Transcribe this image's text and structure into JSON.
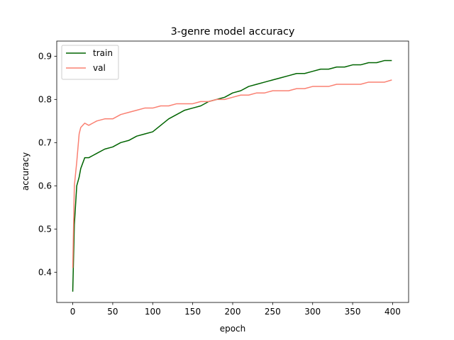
{
  "chart_data": {
    "type": "line",
    "title": "3-genre model accuracy",
    "xlabel": "epoch",
    "ylabel": "accuracy",
    "xlim": [
      -20,
      420
    ],
    "ylim": [
      0.33,
      0.935
    ],
    "xticks": [
      0,
      50,
      100,
      150,
      200,
      250,
      300,
      350,
      400
    ],
    "yticks": [
      0.4,
      0.5,
      0.6,
      0.7,
      0.8,
      0.9
    ],
    "grid": false,
    "legend": "upper-left",
    "series": [
      {
        "name": "train",
        "color": "#006400",
        "x": [
          0,
          2,
          5,
          8,
          10,
          15,
          20,
          25,
          30,
          40,
          50,
          60,
          70,
          80,
          90,
          100,
          110,
          120,
          130,
          140,
          150,
          160,
          170,
          180,
          190,
          200,
          210,
          220,
          230,
          240,
          250,
          260,
          270,
          280,
          290,
          300,
          310,
          320,
          330,
          340,
          350,
          360,
          370,
          380,
          390,
          399
        ],
        "y": [
          0.355,
          0.51,
          0.6,
          0.62,
          0.64,
          0.665,
          0.665,
          0.67,
          0.675,
          0.685,
          0.69,
          0.7,
          0.705,
          0.715,
          0.72,
          0.725,
          0.74,
          0.755,
          0.765,
          0.775,
          0.78,
          0.785,
          0.795,
          0.8,
          0.805,
          0.815,
          0.82,
          0.83,
          0.835,
          0.84,
          0.845,
          0.85,
          0.855,
          0.86,
          0.86,
          0.865,
          0.87,
          0.87,
          0.875,
          0.875,
          0.88,
          0.88,
          0.885,
          0.885,
          0.89,
          0.89
        ]
      },
      {
        "name": "val",
        "color": "#fa8072",
        "x": [
          0,
          2,
          5,
          8,
          10,
          15,
          20,
          25,
          30,
          40,
          50,
          60,
          70,
          80,
          90,
          100,
          110,
          120,
          130,
          140,
          150,
          160,
          170,
          180,
          190,
          200,
          210,
          220,
          230,
          240,
          250,
          260,
          270,
          280,
          290,
          300,
          310,
          320,
          330,
          340,
          350,
          360,
          370,
          380,
          390,
          399
        ],
        "y": [
          0.41,
          0.6,
          0.655,
          0.72,
          0.735,
          0.745,
          0.74,
          0.745,
          0.75,
          0.755,
          0.755,
          0.765,
          0.77,
          0.775,
          0.78,
          0.78,
          0.785,
          0.785,
          0.79,
          0.79,
          0.79,
          0.795,
          0.795,
          0.8,
          0.8,
          0.805,
          0.81,
          0.81,
          0.815,
          0.815,
          0.82,
          0.82,
          0.82,
          0.825,
          0.825,
          0.83,
          0.83,
          0.83,
          0.835,
          0.835,
          0.835,
          0.835,
          0.84,
          0.84,
          0.84,
          0.845
        ]
      }
    ]
  }
}
